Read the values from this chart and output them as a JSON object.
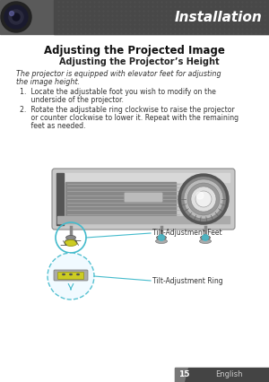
{
  "page_bg": "#ffffff",
  "header_text": "Installation",
  "header_text_color": "#ffffff",
  "title1": "Adjusting the Projected Image",
  "title2": "Adjusting the Projector’s Height",
  "italic_line1": "The projector is equipped with elevator feet for adjusting",
  "italic_line2": "the image height.",
  "bullet1a": "1.  Locate the adjustable foot you wish to modify on the",
  "bullet1b": "     underside of the projector.",
  "bullet2a": "2.  Rotate the adjustable ring clockwise to raise the projector",
  "bullet2b": "     or counter clockwise to lower it. Repeat with the remaining",
  "bullet2c": "     feet as needed.",
  "label_feet": "Tilt-Adjustment Feet",
  "label_ring": "Tilt-Adjustment Ring",
  "footer_page": "15",
  "footer_lang": "English",
  "circle_color": "#44bbcc",
  "yellow_color": "#cccc22",
  "title1_fontsize": 8.5,
  "title2_fontsize": 7.0,
  "italic_fontsize": 5.8,
  "body_fontsize": 5.6,
  "label_fontsize": 5.5
}
